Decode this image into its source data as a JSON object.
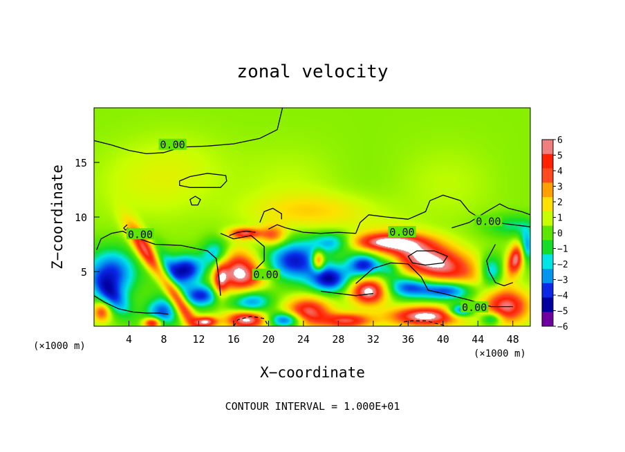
{
  "chart_data": {
    "type": "heatmap",
    "title": "zonal velocity",
    "xlabel": "X−coordinate",
    "ylabel": "Z−coordinate",
    "x_unit": "(×1000 m)",
    "x_unit_right": "(×1000 m)",
    "xlim": [
      0,
      50
    ],
    "ylim": [
      0,
      20
    ],
    "x_ticks": [
      4,
      8,
      12,
      16,
      20,
      24,
      28,
      32,
      36,
      40,
      44,
      48
    ],
    "y_ticks": [
      5,
      10,
      15
    ],
    "note": "CONTOUR INTERVAL = 1.000E+01",
    "contour_label": "0.00",
    "contour_label_points": [
      {
        "x": 9.0,
        "y": 16.6
      },
      {
        "x": 5.3,
        "y": 8.4
      },
      {
        "x": 19.7,
        "y": 4.7
      },
      {
        "x": 35.3,
        "y": 8.6
      },
      {
        "x": 45.2,
        "y": 9.6
      },
      {
        "x": 43.6,
        "y": 1.7
      }
    ],
    "colorbar": {
      "min": -6,
      "max": 6,
      "tick_labels": [
        "6",
        "5",
        "4",
        "3",
        "2",
        "1",
        "0",
        "−1",
        "−2",
        "−3",
        "−4",
        "−5",
        "−6"
      ],
      "colors": [
        "#f08080",
        "#ff2000",
        "#ff4a20",
        "#ffa000",
        "#ffe000",
        "#c8ff00",
        "#5ce600",
        "#14dc28",
        "#00e6e6",
        "#0096f0",
        "#0a28e6",
        "#0000a0",
        "#6e00a0"
      ]
    },
    "field_description": "Mostly near-zero (green) above z=10 km; alternating tilted bands of strong positive (red/white) and negative (blue) velocity below z=9 km.",
    "features": [
      {
        "type": "background",
        "value": 0.4,
        "x": [
          0,
          50
        ],
        "y": [
          0,
          20
        ]
      },
      {
        "type": "blob",
        "cx": 25,
        "cy": 10.5,
        "rx": 7,
        "ry": 1.6,
        "value": 1.6
      },
      {
        "type": "blob",
        "cx": 10,
        "cy": 14,
        "rx": 6,
        "ry": 3.5,
        "value": 0.8
      },
      {
        "type": "blob",
        "cx": 48,
        "cy": 9.2,
        "rx": 3.2,
        "ry": 1.0,
        "value": -1.8
      },
      {
        "type": "blob",
        "cx": 2,
        "cy": 4.8,
        "rx": 2.8,
        "ry": 2.2,
        "value": -4.5
      },
      {
        "type": "blob",
        "cx": 6,
        "cy": 6.8,
        "rx": 3.0,
        "ry": 0.9,
        "angle": -52,
        "value": 6.5
      },
      {
        "type": "blob",
        "cx": 8,
        "cy": 5,
        "rx": 3.0,
        "ry": 1.3,
        "angle": -50,
        "value": -4.0
      },
      {
        "type": "blob",
        "cx": 7.8,
        "cy": 1.3,
        "rx": 1.8,
        "ry": 1.3,
        "value": -4.0
      },
      {
        "type": "blob",
        "cx": 2.2,
        "cy": 2.6,
        "rx": 2.5,
        "ry": 1.1,
        "angle": -38,
        "value": -3.0
      },
      {
        "type": "blob",
        "cx": 9.5,
        "cy": 2.6,
        "rx": 3.6,
        "ry": 0.8,
        "angle": -52,
        "value": 6.0
      },
      {
        "type": "blob",
        "cx": 0.9,
        "cy": 1.3,
        "rx": 1.0,
        "ry": 0.9,
        "value": 4.0
      },
      {
        "type": "blob",
        "cx": 10.6,
        "cy": 5.2,
        "rx": 2.0,
        "ry": 1.3,
        "value": -5.0
      },
      {
        "type": "blob",
        "cx": 14,
        "cy": 6.5,
        "rx": 1.6,
        "ry": 1.4,
        "value": -4.0
      },
      {
        "type": "blob",
        "cx": 12.3,
        "cy": 2.8,
        "rx": 2.0,
        "ry": 1.0,
        "value": -4.5
      },
      {
        "type": "blob",
        "cx": 12.8,
        "cy": 0.4,
        "rx": 1.3,
        "ry": 0.5,
        "value": 6.0
      },
      {
        "type": "blob",
        "cx": 6.7,
        "cy": 0.3,
        "rx": 1.0,
        "ry": 0.5,
        "value": 6.0
      },
      {
        "type": "blob",
        "cx": 16.7,
        "cy": 4.8,
        "rx": 2.8,
        "ry": 1.9,
        "angle": -20,
        "value": 6.5
      },
      {
        "type": "blob",
        "cx": 17.3,
        "cy": 8.5,
        "rx": 1.8,
        "ry": 0.5,
        "value": 5.0
      },
      {
        "type": "blob",
        "cx": 14.5,
        "cy": 4.2,
        "rx": 0.8,
        "ry": 1.6,
        "value": 4.0
      },
      {
        "type": "blob",
        "cx": 18,
        "cy": 2.4,
        "rx": 2.3,
        "ry": 1.2,
        "value": -4.5
      },
      {
        "type": "blob",
        "cx": 17.5,
        "cy": 0.6,
        "rx": 2.3,
        "ry": 0.8,
        "value": 6.5
      },
      {
        "type": "blob",
        "cx": 20.5,
        "cy": 8.3,
        "rx": 1.5,
        "ry": 0.9,
        "value": 3.5
      },
      {
        "type": "blob",
        "cx": 23,
        "cy": 6.0,
        "rx": 3.2,
        "ry": 1.8,
        "value": -4.8
      },
      {
        "type": "blob",
        "cx": 25.7,
        "cy": 6.0,
        "rx": 0.7,
        "ry": 0.9,
        "value": 5.0
      },
      {
        "type": "blob",
        "cx": 27,
        "cy": 4.3,
        "rx": 2.2,
        "ry": 1.2,
        "value": -5.0
      },
      {
        "type": "blob",
        "cx": 24.5,
        "cy": 1.3,
        "rx": 2.5,
        "ry": 1.3,
        "value": 5.5
      },
      {
        "type": "blob",
        "cx": 22,
        "cy": 0.6,
        "rx": 2.0,
        "ry": 0.7,
        "value": -5.0
      },
      {
        "type": "blob",
        "cx": 29,
        "cy": 0.5,
        "rx": 2.8,
        "ry": 0.7,
        "value": 5.0
      },
      {
        "type": "blob",
        "cx": 27.5,
        "cy": 7.7,
        "rx": 2.5,
        "ry": 0.9,
        "value": -3.5
      },
      {
        "type": "blob",
        "cx": 31.5,
        "cy": 3.2,
        "rx": 2.0,
        "ry": 1.2,
        "value": 6.5
      },
      {
        "type": "blob",
        "cx": 31,
        "cy": 5.6,
        "rx": 2.0,
        "ry": 1.1,
        "value": -5.0
      },
      {
        "type": "blob",
        "cx": 33,
        "cy": 7.7,
        "rx": 4.5,
        "ry": 0.8,
        "value": 4.5
      },
      {
        "type": "blob",
        "cx": 38.5,
        "cy": 6.0,
        "rx": 5.5,
        "ry": 1.8,
        "angle": -14,
        "value": 6.5
      },
      {
        "type": "blob",
        "cx": 34,
        "cy": 5.4,
        "rx": 1.3,
        "ry": 1.0,
        "value": -2.5
      },
      {
        "type": "blob",
        "cx": 36,
        "cy": 3.6,
        "rx": 2.5,
        "ry": 1.0,
        "value": -4.0
      },
      {
        "type": "blob",
        "cx": 40.5,
        "cy": 3.3,
        "rx": 3.0,
        "ry": 0.9,
        "value": -5.0
      },
      {
        "type": "blob",
        "cx": 38,
        "cy": 0.9,
        "rx": 4.0,
        "ry": 0.9,
        "value": 6.5
      },
      {
        "type": "blob",
        "cx": 42,
        "cy": 1.4,
        "rx": 1.5,
        "ry": 0.6,
        "value": -5.0
      },
      {
        "type": "blob",
        "cx": 45.5,
        "cy": 5.0,
        "rx": 1.3,
        "ry": 1.4,
        "value": -3.5
      },
      {
        "type": "blob",
        "cx": 48.4,
        "cy": 6.2,
        "rx": 0.9,
        "ry": 1.6,
        "angle": -25,
        "value": 6.0
      },
      {
        "type": "blob",
        "cx": 49.5,
        "cy": 7.3,
        "rx": 0.8,
        "ry": 1.4,
        "value": -4.5
      },
      {
        "type": "blob",
        "cx": 47.3,
        "cy": 1.8,
        "rx": 2.5,
        "ry": 1.5,
        "value": 5.5
      },
      {
        "type": "blob",
        "cx": 45.6,
        "cy": 0.7,
        "rx": 1.2,
        "ry": 0.6,
        "value": -3.5
      }
    ],
    "contours": [
      {
        "points": [
          [
            0,
            17.0
          ],
          [
            2,
            16.6
          ],
          [
            4,
            16.1
          ],
          [
            6,
            15.8
          ],
          [
            8,
            15.9
          ],
          [
            10,
            16.4
          ],
          [
            13,
            16.5
          ],
          [
            16,
            16.7
          ],
          [
            19,
            17.2
          ],
          [
            21,
            18.0
          ],
          [
            21.3,
            19.0
          ],
          [
            21.6,
            20
          ]
        ]
      },
      {
        "closed": true,
        "points": [
          [
            9.8,
            13.3
          ],
          [
            11,
            13.7
          ],
          [
            13,
            14.0
          ],
          [
            15.1,
            13.8
          ],
          [
            15.2,
            13.3
          ],
          [
            14.5,
            12.7
          ],
          [
            13,
            12.7
          ],
          [
            11,
            12.7
          ],
          [
            9.8,
            12.9
          ]
        ]
      },
      {
        "closed": true,
        "points": [
          [
            11,
            11.6
          ],
          [
            11.6,
            11.9
          ],
          [
            12.2,
            11.6
          ],
          [
            11.9,
            11.1
          ],
          [
            11.2,
            11.1
          ]
        ]
      },
      {
        "points": [
          [
            0.3,
            7.0
          ],
          [
            0.8,
            8.0
          ],
          [
            2,
            8.5
          ],
          [
            3.3,
            8.7
          ],
          [
            4.5,
            8.2
          ],
          [
            7,
            7.5
          ],
          [
            10,
            7.4
          ],
          [
            13,
            6.9
          ],
          [
            14,
            6.2
          ],
          [
            14.3,
            4.5
          ],
          [
            14.5,
            2.8
          ]
        ]
      },
      {
        "points": [
          [
            0,
            2.8
          ],
          [
            1.2,
            2.2
          ],
          [
            2.8,
            1.6
          ],
          [
            4.5,
            1.3
          ],
          [
            6,
            1.2
          ],
          [
            7.5,
            1.2
          ],
          [
            8.5,
            1.1
          ]
        ]
      },
      {
        "points": [
          [
            3.8,
            9.3
          ],
          [
            3.4,
            9.0
          ],
          [
            3.6,
            8.8
          ],
          [
            3.9,
            9.0
          ]
        ]
      },
      {
        "points": [
          [
            14.5,
            8.5
          ],
          [
            16,
            8.0
          ],
          [
            18,
            8.3
          ],
          [
            19.5,
            7.3
          ],
          [
            19.5,
            6.0
          ],
          [
            18.5,
            5.2
          ],
          [
            18.3,
            4.4
          ]
        ]
      },
      {
        "points": [
          [
            19,
            9.5
          ],
          [
            19.5,
            10.5
          ],
          [
            20.5,
            10.8
          ],
          [
            21.5,
            10.3
          ],
          [
            21.5,
            9.8
          ]
        ]
      },
      {
        "points": [
          [
            15.5,
            8.3
          ],
          [
            16.5,
            8.6
          ],
          [
            17.5,
            8.7
          ],
          [
            18.5,
            8.6
          ]
        ]
      },
      {
        "points": [
          [
            20,
            8.9
          ],
          [
            21,
            9.3
          ],
          [
            22,
            9.0
          ],
          [
            24,
            8.6
          ],
          [
            26,
            8.5
          ],
          [
            28,
            8.6
          ],
          [
            30,
            8.5
          ]
        ]
      },
      {
        "points": [
          [
            30,
            8.5
          ],
          [
            30.5,
            9.5
          ],
          [
            31.5,
            10.2
          ],
          [
            33.5,
            10.0
          ],
          [
            36,
            9.8
          ],
          [
            38,
            10.5
          ],
          [
            38.5,
            11.5
          ],
          [
            40,
            12.0
          ],
          [
            42,
            11.5
          ],
          [
            43,
            10.5
          ],
          [
            44,
            10.0
          ],
          [
            46,
            9.5
          ],
          [
            48,
            9.3
          ],
          [
            50,
            9.1
          ]
        ]
      },
      {
        "points": [
          [
            41,
            9.0
          ],
          [
            43,
            9.5
          ],
          [
            45,
            10.5
          ],
          [
            46.5,
            11.2
          ],
          [
            47.5,
            10.8
          ],
          [
            49,
            10.5
          ],
          [
            50,
            10.2
          ]
        ]
      },
      {
        "points": [
          [
            30,
            3.9
          ],
          [
            32,
            5.3
          ],
          [
            34,
            5.8
          ],
          [
            36,
            5.7
          ],
          [
            37.5,
            4.5
          ],
          [
            38.3,
            3.3
          ],
          [
            40,
            3.0
          ],
          [
            43,
            2.4
          ],
          [
            45.5,
            1.8
          ],
          [
            48,
            1.8
          ]
        ]
      },
      {
        "points": [
          [
            26,
            3.2
          ],
          [
            28,
            3.0
          ],
          [
            30,
            2.8
          ],
          [
            32,
            3.0
          ]
        ]
      },
      {
        "points": [
          [
            46,
            7.5
          ],
          [
            45,
            6.0
          ],
          [
            45.3,
            5.0
          ],
          [
            46,
            4.0
          ],
          [
            47,
            3.7
          ],
          [
            48,
            4.0
          ]
        ]
      },
      {
        "closed": true,
        "points": [
          [
            36,
            6.4
          ],
          [
            37,
            6.9
          ],
          [
            39,
            6.9
          ],
          [
            40.5,
            6.4
          ],
          [
            40,
            5.8
          ],
          [
            38,
            5.6
          ],
          [
            36.5,
            5.8
          ]
        ]
      },
      {
        "dashed": true,
        "points": [
          [
            16,
            0
          ],
          [
            16.5,
            0.6
          ],
          [
            18,
            0.9
          ],
          [
            19.5,
            0.7
          ],
          [
            20,
            0
          ]
        ]
      },
      {
        "dashed": true,
        "points": [
          [
            35,
            0
          ],
          [
            35.5,
            0.4
          ],
          [
            36.5,
            0.5
          ],
          [
            38,
            0.5
          ],
          [
            39,
            0.3
          ],
          [
            40.5,
            0
          ]
        ]
      }
    ]
  }
}
